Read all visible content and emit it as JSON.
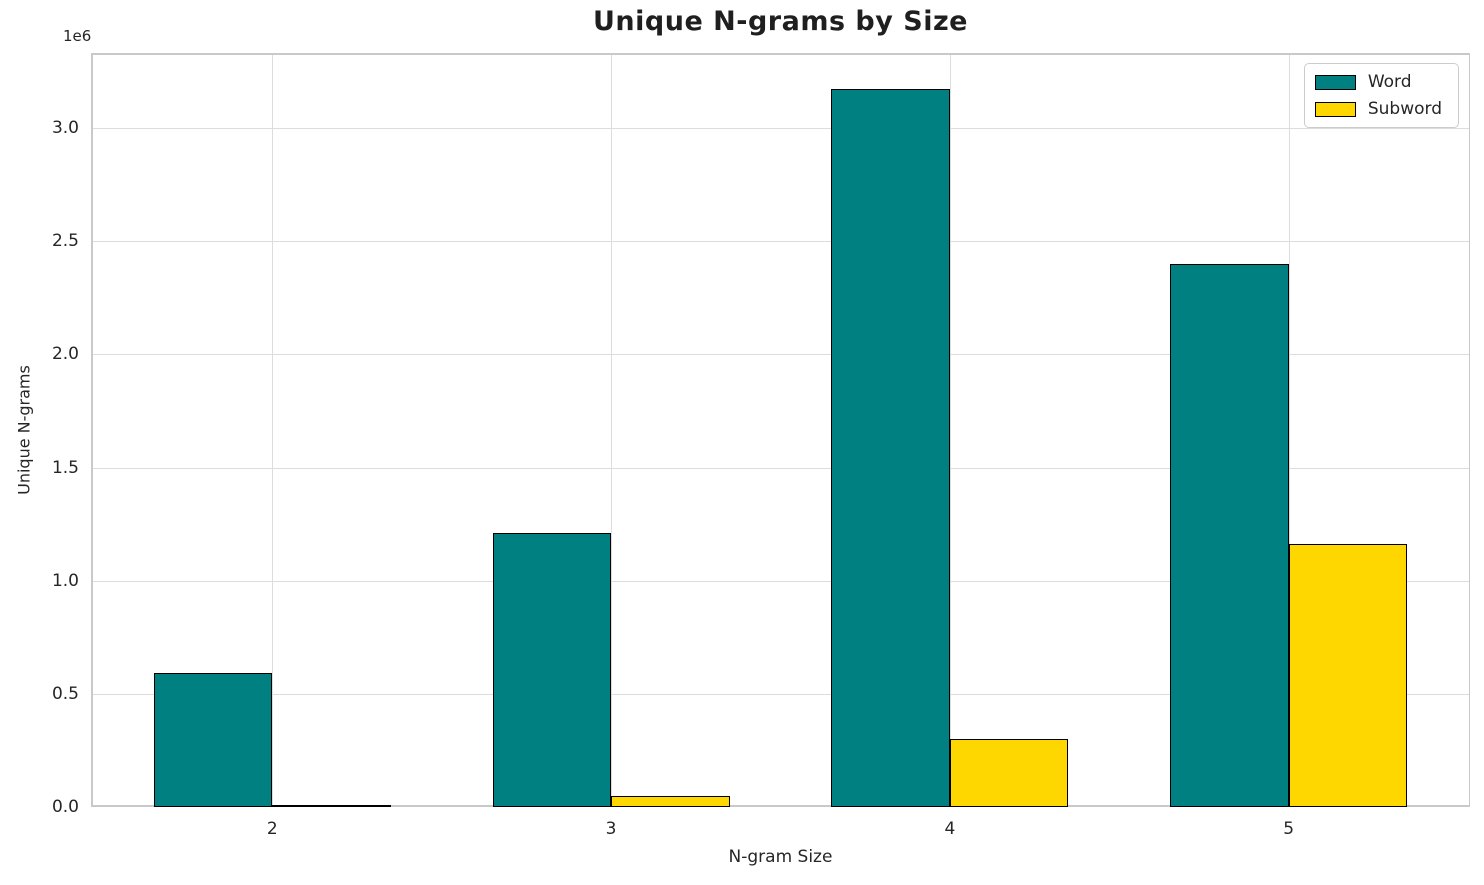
{
  "chart_data": {
    "type": "bar",
    "title": "Unique N-grams by Size",
    "xlabel": "N-gram Size",
    "ylabel": "Unique N-grams",
    "offset_text": "1e6",
    "categories": [
      "2",
      "3",
      "4",
      "5"
    ],
    "x_positions": [
      2,
      3,
      4,
      5
    ],
    "series": [
      {
        "name": "Word",
        "color": "#008080",
        "values": [
          590000,
          1210000,
          3170000,
          2400000
        ]
      },
      {
        "name": "Subword",
        "color": "#FFD700",
        "values": [
          7000,
          50000,
          300000,
          1160000
        ]
      }
    ],
    "bar_width": 0.35,
    "xlim": [
      1.465,
      5.535
    ],
    "ylim": [
      0,
      3331000
    ],
    "yticks": [
      0,
      500000,
      1000000,
      1500000,
      2000000,
      2500000,
      3000000
    ],
    "ytick_labels": [
      "0.0",
      "0.5",
      "1.0",
      "1.5",
      "2.0",
      "2.5",
      "3.0"
    ],
    "grid": true,
    "legend_position": "upper right",
    "style": {
      "background": "#ffffff",
      "grid_color": "#dcdcdc",
      "spine_color": "#c9c9c9",
      "text_color": "#262626",
      "bar_edge_color": "#000000",
      "legend_border_color": "#cccccc"
    }
  }
}
